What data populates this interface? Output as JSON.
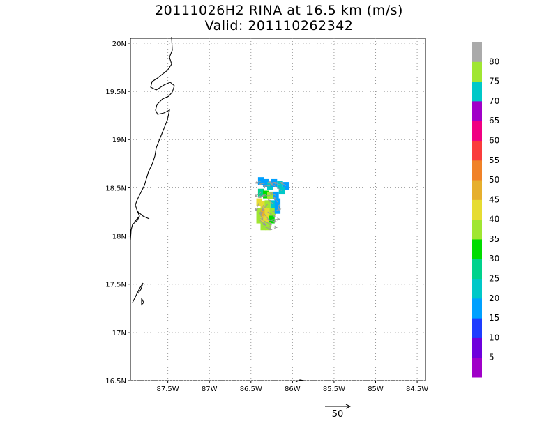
{
  "chart_data": {
    "type": "heatmap",
    "title_line1": "20111026H2 RINA at 16.5 km (m/s)",
    "title_line2": "Valid: 201110262342",
    "x_range": [
      -87.95,
      -84.4
    ],
    "y_range": [
      16.5,
      20.05
    ],
    "x_ticks": [
      -87.5,
      -87.0,
      -86.5,
      -86.0,
      -85.5,
      -85.0,
      -84.5
    ],
    "x_tick_labels": [
      "87.5W",
      "87W",
      "86.5W",
      "86W",
      "85.5W",
      "85W",
      "84.5W"
    ],
    "y_ticks": [
      16.5,
      17.0,
      17.5,
      18.0,
      18.5,
      19.0,
      19.5,
      20.0
    ],
    "y_tick_labels": [
      "16.5N",
      "17N",
      "17.5N",
      "18N",
      "18.5N",
      "19N",
      "19.5N",
      "20N"
    ],
    "grid": true,
    "colorbar": {
      "labels": [
        "5",
        "10",
        "15",
        "20",
        "25",
        "30",
        "35",
        "40",
        "45",
        "50",
        "55",
        "60",
        "65",
        "70",
        "75",
        "80"
      ],
      "colors": [
        "#a000c8",
        "#6e00dc",
        "#1e3cff",
        "#00a0ff",
        "#00c8c8",
        "#00d28c",
        "#00dc00",
        "#a0e632",
        "#e6dc32",
        "#e6af2d",
        "#f08228",
        "#fa3c3c",
        "#f00082",
        "#a000c8",
        "#00c8c8",
        "#a0e632",
        "#aaaaaa"
      ]
    },
    "reference_vector_label": "50",
    "wind_field": [
      {
        "lon": -86.38,
        "lat": 18.57,
        "speed": 15
      },
      {
        "lon": -86.32,
        "lat": 18.55,
        "speed": 18
      },
      {
        "lon": -86.27,
        "lat": 18.52,
        "speed": 20
      },
      {
        "lon": -86.22,
        "lat": 18.55,
        "speed": 15
      },
      {
        "lon": -86.15,
        "lat": 18.53,
        "speed": 20
      },
      {
        "lon": -86.08,
        "lat": 18.52,
        "speed": 15
      },
      {
        "lon": -86.38,
        "lat": 18.45,
        "speed": 25
      },
      {
        "lon": -86.32,
        "lat": 18.43,
        "speed": 30
      },
      {
        "lon": -86.27,
        "lat": 18.42,
        "speed": 35
      },
      {
        "lon": -86.2,
        "lat": 18.42,
        "speed": 15
      },
      {
        "lon": -86.13,
        "lat": 18.47,
        "speed": 70
      },
      {
        "lon": -86.4,
        "lat": 18.35,
        "speed": 40
      },
      {
        "lon": -86.35,
        "lat": 18.32,
        "speed": 42
      },
      {
        "lon": -86.3,
        "lat": 18.33,
        "speed": 38
      },
      {
        "lon": -86.23,
        "lat": 18.33,
        "speed": 20
      },
      {
        "lon": -86.18,
        "lat": 18.35,
        "speed": 15
      },
      {
        "lon": -86.4,
        "lat": 18.25,
        "speed": 38
      },
      {
        "lon": -86.35,
        "lat": 18.24,
        "speed": 45
      },
      {
        "lon": -86.3,
        "lat": 18.25,
        "speed": 42
      },
      {
        "lon": -86.24,
        "lat": 18.25,
        "speed": 35
      },
      {
        "lon": -86.18,
        "lat": 18.27,
        "speed": 15
      },
      {
        "lon": -86.4,
        "lat": 18.17,
        "speed": 35
      },
      {
        "lon": -86.35,
        "lat": 18.16,
        "speed": 40
      },
      {
        "lon": -86.3,
        "lat": 18.17,
        "speed": 40
      },
      {
        "lon": -86.25,
        "lat": 18.17,
        "speed": 30
      },
      {
        "lon": -86.35,
        "lat": 18.1,
        "speed": 38
      },
      {
        "lon": -86.29,
        "lat": 18.1,
        "speed": 35
      }
    ]
  }
}
